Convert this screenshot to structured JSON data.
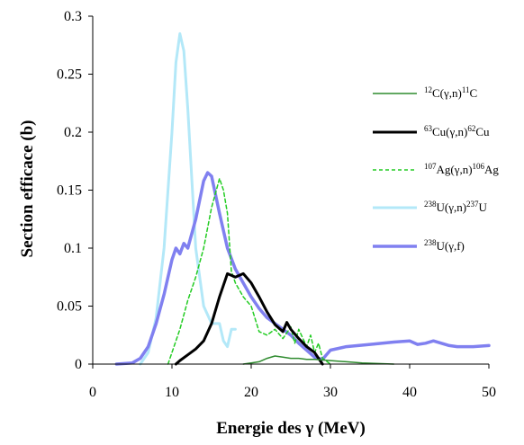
{
  "chart_data": {
    "type": "line",
    "xlabel": "Energie des γ (MeV)",
    "ylabel": "Section efficace (b)",
    "xlim": [
      0,
      50
    ],
    "ylim": [
      0,
      0.3
    ],
    "xticks": [
      "0",
      "10",
      "20",
      "30",
      "40",
      "50"
    ],
    "yticks": [
      "0",
      "0.05",
      "0.1",
      "0.15",
      "0.2",
      "0.25",
      "0.3"
    ],
    "grid": false,
    "legend_position": "right",
    "series": [
      {
        "name": "12C(γ,n)11C",
        "label_parts": [
          {
            "sup": "12"
          },
          {
            "t": "C(γ,n)"
          },
          {
            "sup": "11"
          },
          {
            "t": "C"
          }
        ],
        "color": "#2e8b2e",
        "style": "solid",
        "width": 1.5,
        "points": [
          [
            19,
            0
          ],
          [
            20,
            0.001
          ],
          [
            21,
            0.002
          ],
          [
            22,
            0.005
          ],
          [
            23,
            0.007
          ],
          [
            24,
            0.006
          ],
          [
            25,
            0.005
          ],
          [
            26,
            0.005
          ],
          [
            27,
            0.004
          ],
          [
            28,
            0.004
          ],
          [
            30,
            0.003
          ],
          [
            32,
            0.002
          ],
          [
            34,
            0.001
          ],
          [
            36,
            0.0005
          ],
          [
            38,
            0
          ]
        ]
      },
      {
        "name": "63Cu(γ,n)62Cu",
        "label_parts": [
          {
            "sup": "63"
          },
          {
            "t": "Cu(γ,n)"
          },
          {
            "sup": "62"
          },
          {
            "t": "Cu"
          }
        ],
        "color": "#000000",
        "style": "solid",
        "width": 3,
        "points": [
          [
            10.5,
            0
          ],
          [
            11,
            0.003
          ],
          [
            12,
            0.008
          ],
          [
            13,
            0.013
          ],
          [
            14,
            0.02
          ],
          [
            15,
            0.035
          ],
          [
            16,
            0.058
          ],
          [
            17,
            0.078
          ],
          [
            18,
            0.075
          ],
          [
            19,
            0.078
          ],
          [
            20,
            0.07
          ],
          [
            21,
            0.058
          ],
          [
            22,
            0.045
          ],
          [
            23,
            0.034
          ],
          [
            24,
            0.028
          ],
          [
            24.5,
            0.036
          ],
          [
            25,
            0.03
          ],
          [
            26,
            0.022
          ],
          [
            27,
            0.015
          ],
          [
            28,
            0.01
          ],
          [
            28.5,
            0.005
          ],
          [
            29,
            0
          ]
        ]
      },
      {
        "name": "107Ag(γ,n)106Ag",
        "label_parts": [
          {
            "sup": "107"
          },
          {
            "t": "Ag(γ,n)"
          },
          {
            "sup": "106"
          },
          {
            "t": "Ag"
          }
        ],
        "color": "#22cc22",
        "style": "dashed",
        "width": 1.5,
        "points": [
          [
            9.5,
            0
          ],
          [
            10,
            0.01
          ],
          [
            11,
            0.03
          ],
          [
            12,
            0.055
          ],
          [
            13,
            0.075
          ],
          [
            14,
            0.1
          ],
          [
            15,
            0.135
          ],
          [
            16,
            0.16
          ],
          [
            16.5,
            0.15
          ],
          [
            17,
            0.13
          ],
          [
            17.5,
            0.08
          ],
          [
            18,
            0.07
          ],
          [
            19,
            0.058
          ],
          [
            20,
            0.05
          ],
          [
            21,
            0.028
          ],
          [
            22,
            0.025
          ],
          [
            23,
            0.03
          ],
          [
            24,
            0.022
          ],
          [
            25,
            0.032
          ],
          [
            25.5,
            0.018
          ],
          [
            26,
            0.03
          ],
          [
            27,
            0.015
          ],
          [
            27.5,
            0.025
          ],
          [
            28,
            0.01
          ],
          [
            28.5,
            0.018
          ],
          [
            29,
            0.005
          ],
          [
            30,
            0
          ]
        ]
      },
      {
        "name": "238U(γ,n)237U",
        "label_parts": [
          {
            "sup": "238"
          },
          {
            "t": "U(γ,n)"
          },
          {
            "sup": "237"
          },
          {
            "t": "U"
          }
        ],
        "color": "#b3e8f8",
        "style": "solid",
        "width": 3,
        "points": [
          [
            6,
            0
          ],
          [
            7,
            0.01
          ],
          [
            8,
            0.04
          ],
          [
            9,
            0.1
          ],
          [
            10,
            0.2
          ],
          [
            10.5,
            0.26
          ],
          [
            11,
            0.285
          ],
          [
            11.5,
            0.27
          ],
          [
            12,
            0.22
          ],
          [
            12.5,
            0.16
          ],
          [
            13,
            0.1
          ],
          [
            14,
            0.05
          ],
          [
            15,
            0.035
          ],
          [
            16,
            0.035
          ],
          [
            16.5,
            0.02
          ],
          [
            17,
            0.015
          ],
          [
            17.5,
            0.03
          ],
          [
            18,
            0.03
          ]
        ]
      },
      {
        "name": "238U(γ,f)",
        "label_parts": [
          {
            "sup": "238"
          },
          {
            "t": "U(γ,f)"
          }
        ],
        "color": "#8080f0",
        "style": "solid",
        "width": 3.5,
        "points": [
          [
            3,
            0
          ],
          [
            5,
            0.001
          ],
          [
            6,
            0.005
          ],
          [
            7,
            0.015
          ],
          [
            8,
            0.035
          ],
          [
            9,
            0.06
          ],
          [
            10,
            0.09
          ],
          [
            10.5,
            0.1
          ],
          [
            11,
            0.095
          ],
          [
            11.5,
            0.104
          ],
          [
            12,
            0.1
          ],
          [
            13,
            0.125
          ],
          [
            14,
            0.158
          ],
          [
            14.5,
            0.165
          ],
          [
            15,
            0.162
          ],
          [
            16,
            0.13
          ],
          [
            17,
            0.1
          ],
          [
            18,
            0.082
          ],
          [
            19,
            0.07
          ],
          [
            20,
            0.058
          ],
          [
            21,
            0.048
          ],
          [
            22,
            0.04
          ],
          [
            23,
            0.035
          ],
          [
            24,
            0.03
          ],
          [
            25,
            0.025
          ],
          [
            26,
            0.018
          ],
          [
            27,
            0.012
          ],
          [
            28,
            0.006
          ],
          [
            29,
            0.004
          ],
          [
            30,
            0.012
          ],
          [
            32,
            0.015
          ],
          [
            35,
            0.017
          ],
          [
            38,
            0.019
          ],
          [
            40,
            0.02
          ],
          [
            41,
            0.017
          ],
          [
            42,
            0.018
          ],
          [
            43,
            0.02
          ],
          [
            44,
            0.018
          ],
          [
            45,
            0.016
          ],
          [
            46,
            0.015
          ],
          [
            48,
            0.015
          ],
          [
            50,
            0.016
          ]
        ]
      }
    ]
  }
}
